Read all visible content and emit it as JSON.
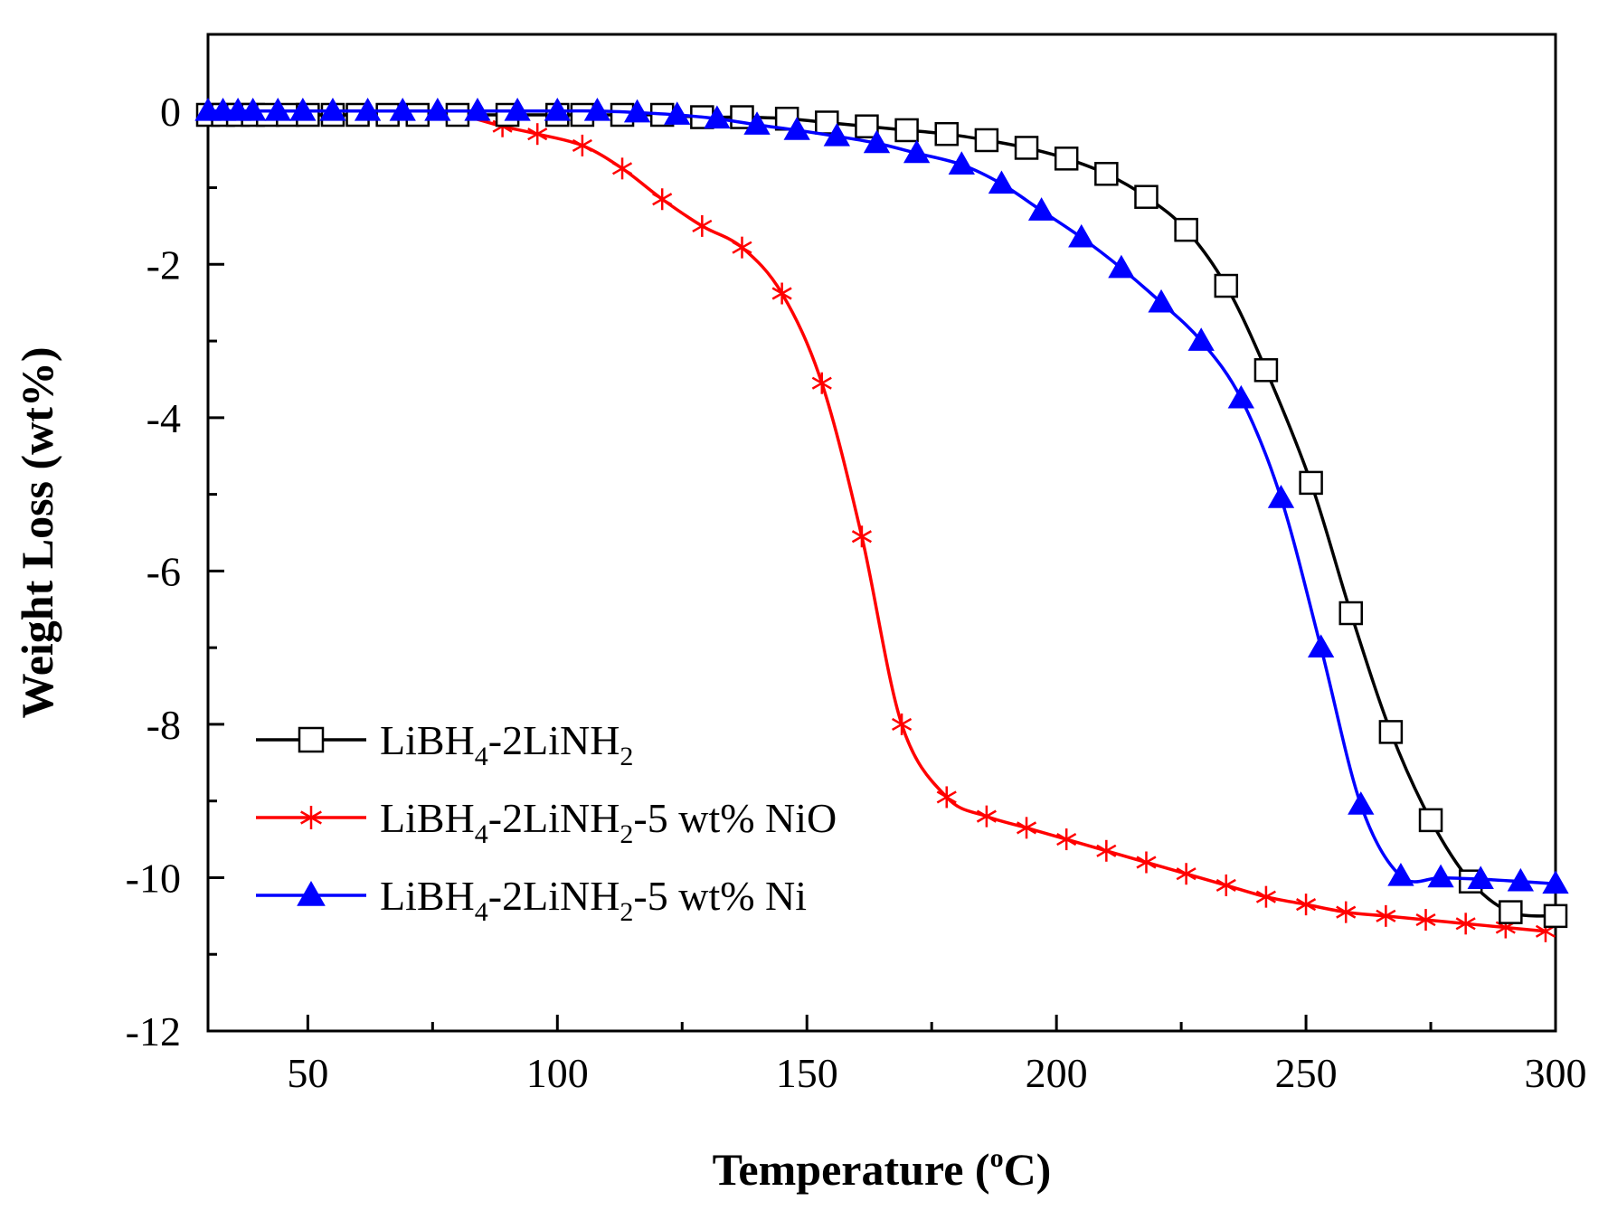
{
  "chart_data": {
    "type": "line",
    "title": "",
    "xlabel": {
      "text": "Temperature (",
      "sup": "o",
      "unit": "C)"
    },
    "ylabel": "Weight Loss (wt%)",
    "xlim": [
      30,
      300
    ],
    "ylim": [
      -12,
      1
    ],
    "x_ticks": [
      50,
      100,
      150,
      200,
      250,
      300
    ],
    "y_ticks": [
      0,
      -2,
      -4,
      -6,
      -8,
      -10,
      -12
    ],
    "x_minor_ticks": [
      75,
      125,
      175,
      225,
      275
    ],
    "y_minor_ticks": [
      -1,
      -3,
      -5,
      -7,
      -9,
      -11
    ],
    "legend_position": "bottom-left",
    "series": [
      {
        "name": "LiBH4-2LiNH2-5 wt% NiO",
        "color": "#ff0000",
        "marker": "star",
        "x": [
          30,
          33,
          36,
          39,
          42,
          46,
          50,
          55,
          60,
          66,
          72,
          80,
          89,
          96,
          105,
          113,
          121,
          129,
          137,
          145,
          153,
          161,
          169,
          178,
          186,
          194,
          202,
          210,
          218,
          226,
          234,
          242,
          250,
          258,
          266,
          274,
          282,
          290,
          298
        ],
        "y": [
          -0.05,
          -0.05,
          -0.05,
          -0.05,
          -0.05,
          -0.05,
          -0.05,
          -0.05,
          -0.05,
          -0.05,
          -0.05,
          -0.05,
          -0.2,
          -0.3,
          -0.45,
          -0.75,
          -1.15,
          -1.5,
          -1.78,
          -2.38,
          -3.55,
          -5.55,
          -8.0,
          -8.95,
          -9.2,
          -9.35,
          -9.5,
          -9.65,
          -9.8,
          -9.95,
          -10.1,
          -10.25,
          -10.35,
          -10.45,
          -10.5,
          -10.55,
          -10.6,
          -10.65,
          -10.7
        ]
      },
      {
        "name": "LiBH4-2LiNH2",
        "color": "#000000",
        "marker": "open-square",
        "x": [
          30,
          33,
          36,
          39,
          42,
          46,
          50,
          55,
          60,
          66,
          72,
          80,
          90,
          100,
          105,
          113,
          121,
          129,
          137,
          146,
          154,
          162,
          170,
          178,
          186,
          194,
          202,
          210,
          218,
          226,
          234,
          242,
          251,
          259,
          267,
          275,
          283,
          291,
          300
        ],
        "y": [
          -0.05,
          -0.05,
          -0.05,
          -0.05,
          -0.05,
          -0.05,
          -0.05,
          -0.05,
          -0.05,
          -0.05,
          -0.05,
          -0.05,
          -0.05,
          -0.05,
          -0.05,
          -0.05,
          -0.05,
          -0.08,
          -0.08,
          -0.1,
          -0.15,
          -0.2,
          -0.25,
          -0.3,
          -0.38,
          -0.48,
          -0.62,
          -0.82,
          -1.12,
          -1.55,
          -2.28,
          -3.38,
          -4.85,
          -6.55,
          -8.1,
          -9.25,
          -10.05,
          -10.45,
          -10.5
        ]
      },
      {
        "name": "LiBH4-2LiNH2-5 wt% Ni",
        "color": "#0000ff",
        "marker": "filled-triangle",
        "x": [
          30,
          33,
          36,
          39,
          44,
          49,
          55,
          62,
          69,
          76,
          84,
          92,
          100,
          108,
          116,
          124,
          132,
          140,
          148,
          156,
          164,
          172,
          181,
          189,
          197,
          205,
          213,
          221,
          229,
          237,
          245,
          253,
          261,
          269,
          277,
          285,
          293,
          300
        ],
        "y": [
          0.0,
          0.0,
          0.0,
          0.0,
          0.0,
          0.0,
          0.0,
          0.0,
          0.0,
          0.0,
          0.0,
          0.0,
          0.0,
          0.0,
          -0.02,
          -0.05,
          -0.1,
          -0.18,
          -0.25,
          -0.33,
          -0.42,
          -0.55,
          -0.7,
          -0.95,
          -1.3,
          -1.65,
          -2.05,
          -2.5,
          -3.0,
          -3.75,
          -5.05,
          -7.0,
          -9.05,
          -9.98,
          -10.0,
          -10.02,
          -10.05,
          -10.08
        ]
      }
    ]
  },
  "legend": {
    "entries": [
      {
        "base": "LiBH",
        "s1": "4",
        "mid": "-2LiNH",
        "s2": "2",
        "tail": "",
        "color": "#000000",
        "marker": "open-square"
      },
      {
        "base": "LiBH",
        "s1": "4",
        "mid": "-2LiNH",
        "s2": "2",
        "tail": "-5 wt% NiO",
        "color": "#ff0000",
        "marker": "star"
      },
      {
        "base": "LiBH",
        "s1": "4",
        "mid": "-2LiNH",
        "s2": "2",
        "tail": "-5 wt% Ni",
        "color": "#0000ff",
        "marker": "filled-triangle"
      }
    ]
  }
}
